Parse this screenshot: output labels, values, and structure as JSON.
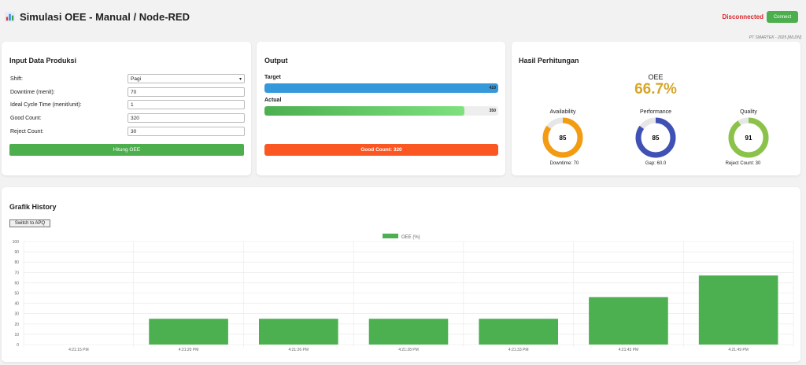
{
  "header": {
    "title": "Simulasi OEE - Manual / Node-RED",
    "status": "Disconnected",
    "connect_label": "Connect",
    "credit": "PT SMARTEK - 2025 [WLDN]",
    "status_color": "#d9262b"
  },
  "input": {
    "title": "Input Data Produksi",
    "fields": [
      {
        "label": "Shift:",
        "value": "Pagi",
        "type": "select"
      },
      {
        "label": "Downtime (menit):",
        "value": "70"
      },
      {
        "label": "Ideal Cycle Time (menit/unit):",
        "value": "1"
      },
      {
        "label": "Good Count:",
        "value": "320"
      },
      {
        "label": "Reject Count:",
        "value": "30"
      }
    ],
    "button_label": "Hitung OEE"
  },
  "output": {
    "title": "Output",
    "target_label": "Target",
    "target_value": "410",
    "target_fraction": 1.0,
    "actual_label": "Actual",
    "actual_value": "350",
    "actual_fraction": 0.855,
    "good_count_label": "Good Count: 320"
  },
  "hasil": {
    "title": "Hasil Perhitungan",
    "oee_label": "OEE",
    "oee_value": "66.7%",
    "gauges": [
      {
        "title": "Availability",
        "value": "85",
        "percent": 85,
        "color": "#f39c12",
        "sub": "Downtime: 70"
      },
      {
        "title": "Performance",
        "value": "85",
        "percent": 85,
        "color": "#3f51b5",
        "sub": "Gap: 60.0"
      },
      {
        "title": "Quality",
        "value": "91",
        "percent": 91,
        "color": "#8bc34a",
        "sub": "Reject Count: 30"
      }
    ]
  },
  "history": {
    "title": "Grafik History",
    "switch_label": "Switch to APQ"
  },
  "chart_data": {
    "type": "bar",
    "title": "",
    "xlabel": "",
    "ylabel": "",
    "legend_position": "top",
    "grid": true,
    "ylim": [
      0,
      100
    ],
    "yticks": [
      "0",
      "10",
      "20",
      "30",
      "40",
      "50",
      "60",
      "70",
      "80",
      "90",
      "100"
    ],
    "categories": [
      "4:21:15 PM",
      "4:21:20 PM",
      "4:21:26 PM",
      "4:21:28 PM",
      "4:21:33 PM",
      "4:21:43 PM",
      "4:21:49 PM"
    ],
    "series": [
      {
        "name": "OEE (%)",
        "color": "#4caf50",
        "values": [
          0,
          25,
          25,
          25,
          25,
          46,
          67
        ]
      }
    ]
  }
}
